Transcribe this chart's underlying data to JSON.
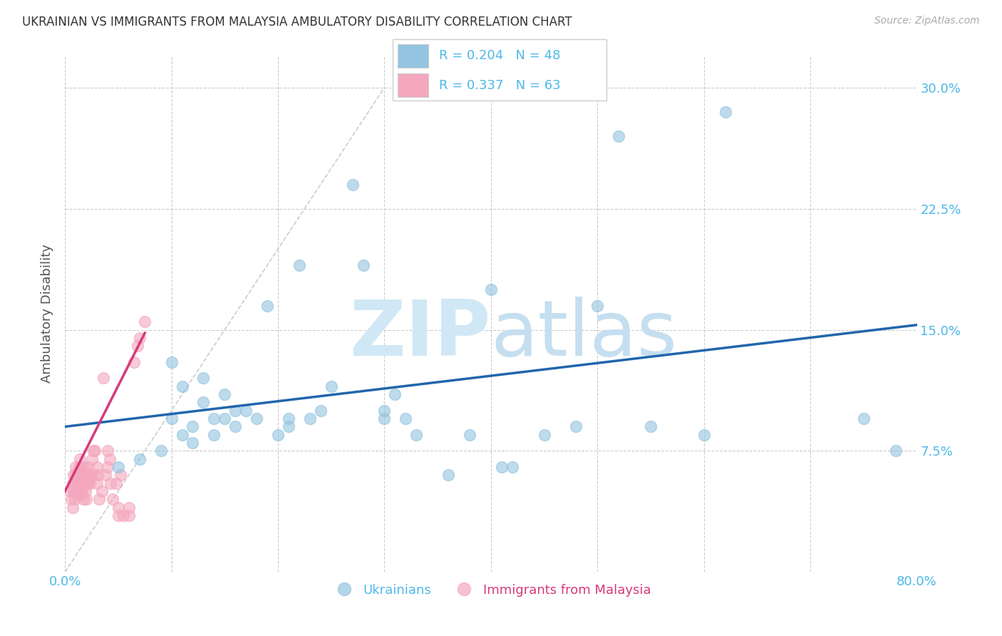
{
  "title": "UKRAINIAN VS IMMIGRANTS FROM MALAYSIA AMBULATORY DISABILITY CORRELATION CHART",
  "source": "Source: ZipAtlas.com",
  "ylabel": "Ambulatory Disability",
  "watermark_zip": "ZIP",
  "watermark_atlas": "atlas",
  "legend_blue_R": "R = 0.204",
  "legend_blue_N": "N = 48",
  "legend_pink_R": "R = 0.337",
  "legend_pink_N": "N = 63",
  "xlim": [
    0.0,
    0.8
  ],
  "ylim": [
    0.0,
    0.32
  ],
  "xticks": [
    0.0,
    0.1,
    0.2,
    0.3,
    0.4,
    0.5,
    0.6,
    0.7,
    0.8
  ],
  "xticklabels": [
    "0.0%",
    "",
    "",
    "",
    "",
    "",
    "",
    "",
    "80.0%"
  ],
  "yticks": [
    0.0,
    0.075,
    0.15,
    0.225,
    0.3
  ],
  "yticklabels": [
    "",
    "7.5%",
    "15.0%",
    "22.5%",
    "30.0%"
  ],
  "grid_color": "#cccccc",
  "background_color": "#ffffff",
  "blue_color": "#93c4e0",
  "pink_color": "#f4a7be",
  "blue_line_color": "#2166ac",
  "pink_line_color": "#d63a7a",
  "dashed_line_color": "#cccccc",
  "title_color": "#333333",
  "axis_label_color": "#555555",
  "tick_label_color": "#4db8e8",
  "legend_text_color": "#4db8e8",
  "legend_border_color": "#cccccc",
  "blue_square_color": "#93c4e0",
  "pink_square_color": "#f4a7be",
  "blue_scatter_x": [
    0.05,
    0.07,
    0.09,
    0.1,
    0.1,
    0.11,
    0.11,
    0.12,
    0.12,
    0.13,
    0.13,
    0.14,
    0.14,
    0.15,
    0.15,
    0.16,
    0.16,
    0.17,
    0.18,
    0.19,
    0.2,
    0.21,
    0.21,
    0.22,
    0.23,
    0.24,
    0.25,
    0.27,
    0.28,
    0.3,
    0.3,
    0.31,
    0.32,
    0.33,
    0.36,
    0.38,
    0.4,
    0.41,
    0.42,
    0.45,
    0.48,
    0.5,
    0.52,
    0.55,
    0.6,
    0.62,
    0.75,
    0.78
  ],
  "blue_scatter_y": [
    0.065,
    0.07,
    0.075,
    0.095,
    0.13,
    0.085,
    0.115,
    0.08,
    0.09,
    0.105,
    0.12,
    0.085,
    0.095,
    0.095,
    0.11,
    0.09,
    0.1,
    0.1,
    0.095,
    0.165,
    0.085,
    0.09,
    0.095,
    0.19,
    0.095,
    0.1,
    0.115,
    0.24,
    0.19,
    0.095,
    0.1,
    0.11,
    0.095,
    0.085,
    0.06,
    0.085,
    0.175,
    0.065,
    0.065,
    0.085,
    0.09,
    0.165,
    0.27,
    0.09,
    0.085,
    0.285,
    0.095,
    0.075
  ],
  "pink_scatter_x": [
    0.005,
    0.006,
    0.007,
    0.007,
    0.008,
    0.008,
    0.009,
    0.009,
    0.01,
    0.01,
    0.01,
    0.011,
    0.011,
    0.012,
    0.012,
    0.013,
    0.013,
    0.014,
    0.014,
    0.015,
    0.015,
    0.015,
    0.016,
    0.016,
    0.017,
    0.018,
    0.018,
    0.019,
    0.019,
    0.02,
    0.02,
    0.021,
    0.021,
    0.022,
    0.023,
    0.024,
    0.025,
    0.026,
    0.027,
    0.028,
    0.03,
    0.03,
    0.031,
    0.032,
    0.035,
    0.036,
    0.038,
    0.04,
    0.04,
    0.042,
    0.043,
    0.045,
    0.048,
    0.05,
    0.05,
    0.052,
    0.055,
    0.06,
    0.06,
    0.065,
    0.068,
    0.07,
    0.075
  ],
  "pink_scatter_y": [
    0.05,
    0.045,
    0.04,
    0.055,
    0.05,
    0.06,
    0.045,
    0.055,
    0.05,
    0.06,
    0.065,
    0.048,
    0.055,
    0.05,
    0.06,
    0.055,
    0.065,
    0.06,
    0.07,
    0.048,
    0.055,
    0.065,
    0.05,
    0.06,
    0.045,
    0.055,
    0.065,
    0.05,
    0.06,
    0.045,
    0.055,
    0.055,
    0.06,
    0.065,
    0.055,
    0.06,
    0.07,
    0.06,
    0.075,
    0.075,
    0.055,
    0.065,
    0.06,
    0.045,
    0.05,
    0.12,
    0.06,
    0.075,
    0.065,
    0.07,
    0.055,
    0.045,
    0.055,
    0.04,
    0.035,
    0.06,
    0.035,
    0.04,
    0.035,
    0.13,
    0.14,
    0.145,
    0.155
  ],
  "blue_trend_x": [
    0.0,
    0.8
  ],
  "blue_trend_y": [
    0.09,
    0.153
  ],
  "pink_trend_x": [
    0.0,
    0.075
  ],
  "pink_trend_y": [
    0.05,
    0.148
  ],
  "diag_line_x": [
    0.0,
    0.3
  ],
  "diag_line_y": [
    0.0,
    0.3
  ],
  "bottom_legend_label_blue": "Ukrainians",
  "bottom_legend_label_pink": "Immigrants from Malaysia"
}
